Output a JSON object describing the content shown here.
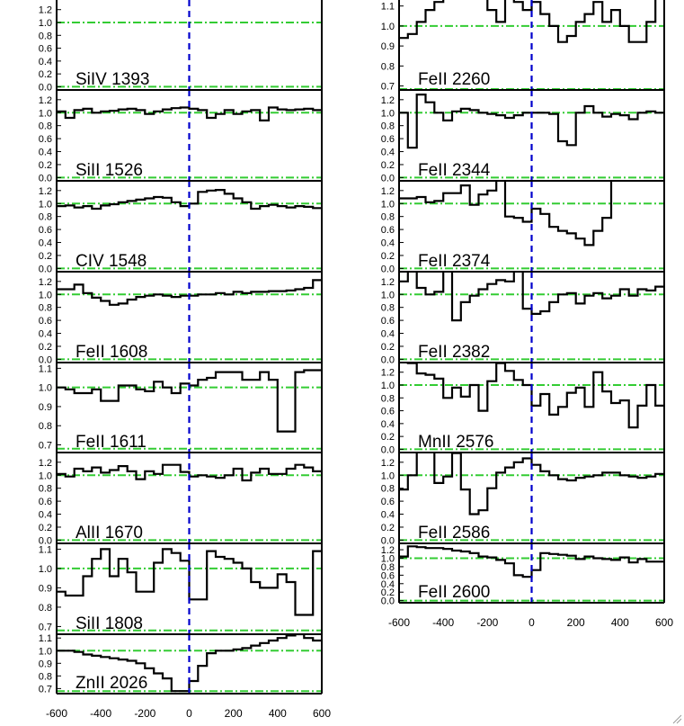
{
  "chart_data": [
    {
      "type": "line",
      "layout": "stacked-panels",
      "column": "left",
      "xlim": [
        -600,
        600
      ],
      "x_ticks": [
        "-600",
        "-400",
        "-200",
        "0",
        "200",
        "400",
        "600"
      ],
      "reference_line_x": 0,
      "panels": [
        {
          "label": "SiIV 1393",
          "ylim": [
            -0.05,
            1.35
          ],
          "ref_y": [
            0.0,
            1.0
          ],
          "y_ticks": [
            "0.0",
            "0.2",
            "0.4",
            "0.6",
            "0.8",
            "1.0",
            "1.2"
          ],
          "values": []
        },
        {
          "label": "SiII 1526",
          "ylim": [
            -0.05,
            1.35
          ],
          "ref_y": [
            0.0,
            1.0
          ],
          "y_ticks": [
            "0.0",
            "0.2",
            "0.4",
            "0.6",
            "0.8",
            "1.0",
            "1.2"
          ],
          "values": [
            1.02,
            0.92,
            1.04,
            1.06,
            1.0,
            1.02,
            1.03,
            1.05,
            1.06,
            1.04,
            0.98,
            1.02,
            1.05,
            1.07,
            1.08,
            1.06,
            1.04,
            0.92,
            0.98,
            1.04,
            0.98,
            1.02,
            1.04,
            0.88,
            1.08,
            1.05,
            1.04,
            1.05,
            1.06,
            1.04
          ]
        },
        {
          "label": "CIV 1548",
          "ylim": [
            -0.05,
            1.35
          ],
          "ref_y": [
            0.0,
            1.0
          ],
          "y_ticks": [
            "0.0",
            "0.2",
            "0.4",
            "0.6",
            "0.8",
            "1.0",
            "1.2"
          ],
          "values": [
            0.96,
            0.97,
            0.94,
            0.96,
            0.92,
            0.97,
            0.99,
            1.02,
            1.04,
            1.06,
            1.08,
            1.1,
            1.09,
            1.02,
            0.96,
            1.0,
            1.18,
            1.2,
            1.21,
            1.15,
            1.08,
            1.02,
            0.92,
            0.96,
            0.98,
            0.96,
            0.94,
            0.96,
            0.95,
            0.93
          ]
        },
        {
          "label": "FeII 1608",
          "ylim": [
            -0.05,
            1.35
          ],
          "ref_y": [
            0.0,
            1.0
          ],
          "y_ticks": [
            "0.0",
            "0.2",
            "0.4",
            "0.6",
            "0.8",
            "1.0",
            "1.2"
          ],
          "values": [
            1.08,
            1.08,
            1.15,
            1.02,
            0.95,
            0.9,
            0.84,
            0.86,
            0.92,
            0.96,
            0.98,
            1.0,
            0.98,
            0.96,
            0.98,
            0.98,
            1.0,
            1.0,
            1.02,
            1.0,
            1.04,
            1.02,
            1.04,
            1.04,
            1.05,
            1.05,
            1.06,
            1.08,
            1.1,
            1.22
          ]
        },
        {
          "label": "FeII 1611",
          "ylim": [
            0.66,
            1.13
          ],
          "ref_y": [
            0.68,
            1.0
          ],
          "y_ticks": [
            "0.7",
            "0.8",
            "0.9",
            "1.0",
            "1.1"
          ],
          "values": [
            1.0,
            0.99,
            0.97,
            0.97,
            0.99,
            0.93,
            0.93,
            1.01,
            1.01,
            0.99,
            0.98,
            1.03,
            1.0,
            0.97,
            1.02,
            1.01,
            1.04,
            1.05,
            1.08,
            1.08,
            1.08,
            1.04,
            1.04,
            1.08,
            1.04,
            0.77,
            0.77,
            1.08,
            1.09,
            1.09
          ]
        },
        {
          "label": "AlII 1670",
          "ylim": [
            -0.05,
            1.35
          ],
          "ref_y": [
            0.0,
            1.0
          ],
          "y_ticks": [
            "0.0",
            "0.2",
            "0.4",
            "0.6",
            "0.8",
            "1.0",
            "1.2"
          ],
          "values": [
            1.02,
            0.98,
            1.1,
            1.06,
            1.12,
            1.04,
            1.08,
            1.14,
            1.06,
            0.94,
            1.06,
            1.02,
            1.16,
            1.16,
            1.05,
            0.98,
            1.0,
            0.98,
            0.96,
            1.0,
            1.1,
            0.92,
            1.04,
            1.1,
            1.02,
            1.02,
            1.1,
            1.16,
            1.12,
            1.06
          ]
        },
        {
          "label": "SiII 1808",
          "ylim": [
            0.66,
            1.13
          ],
          "ref_y": [
            0.68,
            1.0
          ],
          "y_ticks": [
            "0.7",
            "0.8",
            "0.9",
            "1.0",
            "1.1"
          ],
          "values": [
            0.88,
            0.86,
            0.86,
            0.96,
            1.05,
            1.1,
            0.96,
            1.05,
            0.98,
            0.88,
            0.88,
            1.03,
            1.1,
            1.08,
            1.04,
            0.84,
            0.84,
            1.09,
            1.06,
            1.05,
            1.03,
            1.0,
            0.93,
            0.9,
            0.9,
            0.97,
            0.93,
            0.76,
            0.76,
            1.09
          ]
        },
        {
          "label": "ZnII 2026",
          "ylim": [
            0.66,
            1.13
          ],
          "ref_y": [
            0.68,
            1.0
          ],
          "y_ticks": [
            "0.7",
            "0.8",
            "0.9",
            "1.0",
            "1.1"
          ],
          "values": [
            1.0,
            1.0,
            0.99,
            0.97,
            0.96,
            0.95,
            0.94,
            0.93,
            0.92,
            0.9,
            0.86,
            0.82,
            0.78,
            0.68,
            0.68,
            0.76,
            0.88,
            0.98,
            1.0,
            1.0,
            1.01,
            1.02,
            1.04,
            1.06,
            1.08,
            1.1,
            1.12,
            1.13,
            1.1,
            1.08
          ]
        }
      ]
    },
    {
      "type": "line",
      "layout": "stacked-panels",
      "column": "right",
      "xlim": [
        -600,
        600
      ],
      "x_ticks": [
        "-600",
        "-400",
        "-200",
        "0",
        "200",
        "400",
        "600"
      ],
      "reference_line_x": 0,
      "panels": [
        {
          "label": "FeII 2260",
          "ylim": [
            0.68,
            1.13
          ],
          "ref_y": [
            0.68,
            1.0
          ],
          "y_ticks": [
            "0.7",
            "0.8",
            "0.9",
            "1.0",
            "1.1"
          ],
          "values": [
            0.94,
            0.96,
            1.02,
            1.08,
            1.12,
            1.14,
            1.16,
            1.15,
            1.18,
            1.2,
            1.08,
            1.02,
            1.2,
            1.12,
            1.08,
            1.12,
            1.06,
            1.0,
            0.92,
            0.95,
            1.02,
            1.06,
            1.12,
            1.02,
            1.08,
            1.0,
            0.92,
            0.92,
            1.02,
            1.2
          ]
        },
        {
          "label": "FeII 2344",
          "ylim": [
            -0.05,
            1.35
          ],
          "ref_y": [
            0.0,
            1.0
          ],
          "y_ticks": [
            "0.0",
            "0.2",
            "0.4",
            "0.6",
            "0.8",
            "1.0",
            "1.2"
          ],
          "values": [
            1.0,
            0.46,
            1.28,
            1.16,
            1.0,
            0.88,
            1.02,
            1.06,
            1.04,
            1.0,
            0.98,
            0.96,
            0.92,
            0.96,
            1.0,
            1.0,
            1.0,
            0.98,
            0.56,
            0.5,
            1.0,
            1.1,
            1.0,
            0.94,
            0.98,
            0.96,
            0.9,
            1.0,
            1.02,
            1.0
          ]
        },
        {
          "label": "FeII 2374",
          "ylim": [
            -0.05,
            1.35
          ],
          "ref_y": [
            0.0,
            1.0
          ],
          "y_ticks": [
            "0.0",
            "0.2",
            "0.4",
            "0.6",
            "0.8",
            "1.0",
            "1.2"
          ],
          "values": [
            1.08,
            1.08,
            1.1,
            1.02,
            1.04,
            1.16,
            1.16,
            1.28,
            0.98,
            1.14,
            1.2,
            1.36,
            0.8,
            0.78,
            0.72,
            0.92,
            0.84,
            0.64,
            0.58,
            0.54,
            0.46,
            0.36,
            0.58,
            0.78,
            1.36,
            1.36,
            1.36,
            1.36,
            1.36,
            1.36
          ]
        },
        {
          "label": "FeII 2382",
          "ylim": [
            -0.05,
            1.35
          ],
          "ref_y": [
            0.0,
            1.0
          ],
          "y_ticks": [
            "0.0",
            "0.2",
            "0.4",
            "0.6",
            "0.8",
            "1.0",
            "1.2"
          ],
          "values": [
            1.2,
            1.38,
            1.1,
            1.0,
            1.04,
            1.38,
            0.6,
            0.88,
            0.98,
            1.08,
            1.16,
            1.22,
            1.2,
            1.36,
            0.78,
            0.7,
            0.74,
            0.88,
            1.0,
            1.02,
            0.86,
            0.98,
            1.02,
            0.94,
            0.98,
            1.08,
            0.98,
            1.08,
            1.06,
            1.12
          ]
        },
        {
          "label": "MnII 2576",
          "ylim": [
            -0.05,
            1.35
          ],
          "ref_y": [
            0.0,
            1.0
          ],
          "y_ticks": [
            "0.0",
            "0.2",
            "0.4",
            "0.6",
            "0.8",
            "1.0",
            "1.2"
          ],
          "values": [
            1.36,
            1.34,
            1.18,
            1.16,
            1.1,
            0.8,
            0.96,
            0.82,
            1.0,
            0.6,
            1.06,
            1.34,
            1.22,
            1.08,
            1.0,
            0.68,
            0.86,
            0.54,
            0.66,
            0.88,
            0.96,
            0.66,
            1.2,
            0.9,
            0.72,
            0.76,
            0.34,
            0.68,
            1.0,
            0.68
          ]
        },
        {
          "label": "FeII 2586",
          "ylim": [
            -0.05,
            1.35
          ],
          "ref_y": [
            0.0,
            1.0
          ],
          "y_ticks": [
            "0.0",
            "0.2",
            "0.4",
            "0.6",
            "0.8",
            "1.0",
            "1.2"
          ],
          "values": [
            0.78,
            1.0,
            1.36,
            1.4,
            0.88,
            0.98,
            1.34,
            0.78,
            0.4,
            0.46,
            0.8,
            1.04,
            1.12,
            1.2,
            1.26,
            1.16,
            1.06,
            1.0,
            0.94,
            0.92,
            0.96,
            0.98,
            1.0,
            1.04,
            1.04,
            1.0,
            0.98,
            0.96,
            0.98,
            1.02
          ]
        },
        {
          "label": "FeII 2600",
          "ylim": [
            -0.05,
            1.35
          ],
          "ref_y": [
            0.0,
            1.0
          ],
          "y_ticks": [
            "0.0",
            "0.2",
            "0.4",
            "0.6",
            "0.8",
            "1.0",
            "1.2"
          ],
          "values": [
            1.04,
            1.28,
            1.26,
            1.24,
            1.24,
            1.22,
            1.18,
            1.16,
            1.12,
            1.04,
            1.02,
            0.96,
            0.88,
            0.6,
            0.56,
            0.72,
            1.12,
            1.1,
            1.08,
            1.06,
            0.98,
            1.04,
            1.0,
            0.98,
            0.96,
            1.02,
            0.9,
            0.98,
            0.92,
            0.92
          ]
        }
      ]
    }
  ],
  "colors": {
    "axes": "#000000",
    "spectrum": "#000000",
    "zero_velocity_line": "#0000cc",
    "continuum_lines": "#33cc33"
  }
}
